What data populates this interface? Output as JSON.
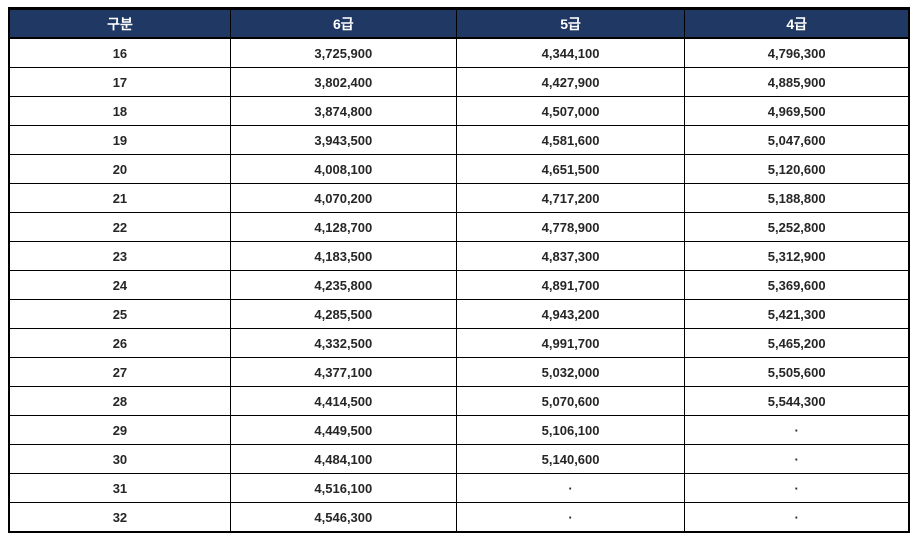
{
  "table": {
    "columns": [
      "구분",
      "6급",
      "5급",
      "4급"
    ],
    "rows": [
      {
        "step": "16",
        "grade6": "3,725,900",
        "grade5": "4,344,100",
        "grade4": "4,796,300"
      },
      {
        "step": "17",
        "grade6": "3,802,400",
        "grade5": "4,427,900",
        "grade4": "4,885,900"
      },
      {
        "step": "18",
        "grade6": "3,874,800",
        "grade5": "4,507,000",
        "grade4": "4,969,500"
      },
      {
        "step": "19",
        "grade6": "3,943,500",
        "grade5": "4,581,600",
        "grade4": "5,047,600"
      },
      {
        "step": "20",
        "grade6": "4,008,100",
        "grade5": "4,651,500",
        "grade4": "5,120,600"
      },
      {
        "step": "21",
        "grade6": "4,070,200",
        "grade5": "4,717,200",
        "grade4": "5,188,800"
      },
      {
        "step": "22",
        "grade6": "4,128,700",
        "grade5": "4,778,900",
        "grade4": "5,252,800"
      },
      {
        "step": "23",
        "grade6": "4,183,500",
        "grade5": "4,837,300",
        "grade4": "5,312,900"
      },
      {
        "step": "24",
        "grade6": "4,235,800",
        "grade5": "4,891,700",
        "grade4": "5,369,600"
      },
      {
        "step": "25",
        "grade6": "4,285,500",
        "grade5": "4,943,200",
        "grade4": "5,421,300"
      },
      {
        "step": "26",
        "grade6": "4,332,500",
        "grade5": "4,991,700",
        "grade4": "5,465,200"
      },
      {
        "step": "27",
        "grade6": "4,377,100",
        "grade5": "5,032,000",
        "grade4": "5,505,600"
      },
      {
        "step": "28",
        "grade6": "4,414,500",
        "grade5": "5,070,600",
        "grade4": "5,544,300"
      },
      {
        "step": "29",
        "grade6": "4,449,500",
        "grade5": "5,106,100",
        "grade4": "·"
      },
      {
        "step": "30",
        "grade6": "4,484,100",
        "grade5": "5,140,600",
        "grade4": "·"
      },
      {
        "step": "31",
        "grade6": "4,516,100",
        "grade5": "·",
        "grade4": "·"
      },
      {
        "step": "32",
        "grade6": "4,546,300",
        "grade5": "·",
        "grade4": "·"
      }
    ]
  },
  "colors": {
    "header_bg": "#1F3864",
    "header_text": "#FFFFFF",
    "body_text": "#262626",
    "border": "#000000"
  }
}
